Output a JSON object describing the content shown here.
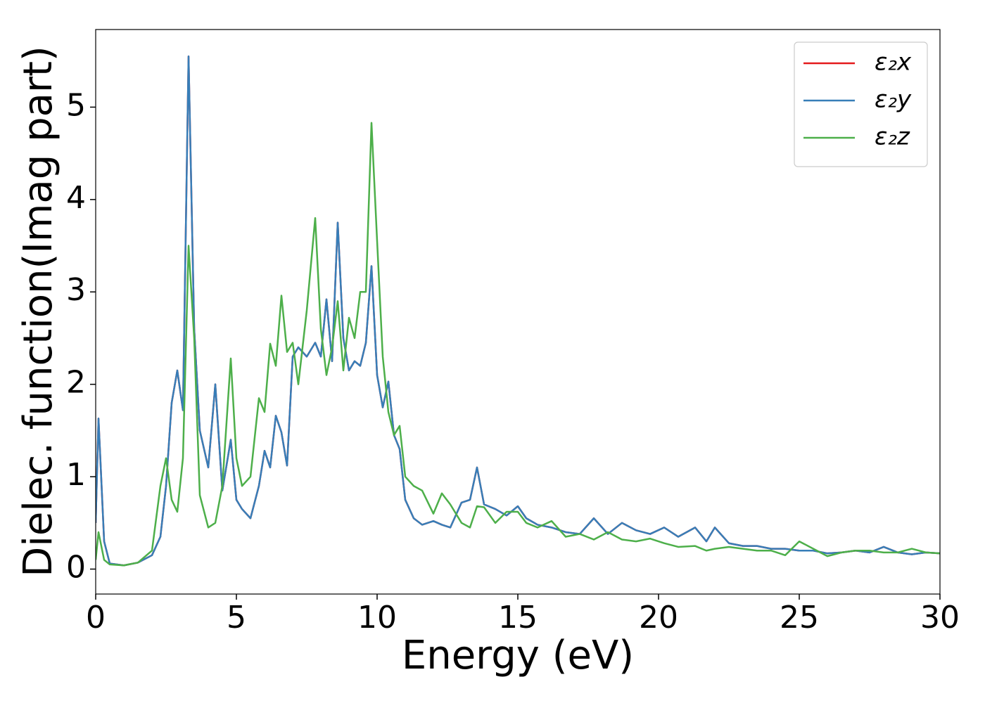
{
  "chart_data": {
    "type": "line",
    "xlabel": "Energy (eV)",
    "ylabel": "Dielec. function(Imag part)",
    "x": [
      0,
      0.1,
      0.3,
      0.5,
      1,
      1.5,
      2,
      2.3,
      2.5,
      2.7,
      2.9,
      3.1,
      3.3,
      3.5,
      3.7,
      4.0,
      4.25,
      4.5,
      4.8,
      5.0,
      5.2,
      5.5,
      5.8,
      6.0,
      6.2,
      6.4,
      6.6,
      6.8,
      7.0,
      7.2,
      7.5,
      7.8,
      8.0,
      8.2,
      8.4,
      8.6,
      8.8,
      9.0,
      9.2,
      9.4,
      9.6,
      9.8,
      10.0,
      10.2,
      10.4,
      10.6,
      10.8,
      11.0,
      11.3,
      11.6,
      12.0,
      12.3,
      12.6,
      13.0,
      13.3,
      13.55,
      13.8,
      14.2,
      14.6,
      15.0,
      15.3,
      15.7,
      16.2,
      16.7,
      17.2,
      17.7,
      18.2,
      18.7,
      19.2,
      19.7,
      20.2,
      20.7,
      21.3,
      21.7,
      22.0,
      22.5,
      23.0,
      23.5,
      24.0,
      24.5,
      25.0,
      25.5,
      26.0,
      26.5,
      27.0,
      27.5,
      28.0,
      28.5,
      29.0,
      29.5,
      30.0
    ],
    "series": [
      {
        "name": "ε₂x",
        "color": "#e41a1c",
        "values": [
          0.5,
          1.63,
          0.3,
          0.06,
          0.04,
          0.07,
          0.15,
          0.35,
          0.9,
          1.8,
          2.15,
          1.72,
          5.55,
          2.6,
          1.5,
          1.1,
          2.0,
          0.85,
          1.4,
          0.75,
          0.65,
          0.55,
          0.9,
          1.28,
          1.1,
          1.66,
          1.48,
          1.12,
          2.3,
          2.4,
          2.3,
          2.45,
          2.3,
          2.92,
          2.25,
          3.75,
          2.5,
          2.15,
          2.25,
          2.2,
          2.45,
          3.28,
          2.1,
          1.75,
          2.03,
          1.45,
          1.3,
          0.75,
          0.55,
          0.48,
          0.52,
          0.48,
          0.45,
          0.72,
          0.75,
          1.1,
          0.7,
          0.65,
          0.58,
          0.68,
          0.55,
          0.48,
          0.45,
          0.4,
          0.38,
          0.55,
          0.38,
          0.5,
          0.42,
          0.38,
          0.45,
          0.35,
          0.45,
          0.3,
          0.45,
          0.28,
          0.25,
          0.25,
          0.22,
          0.22,
          0.2,
          0.2,
          0.17,
          0.18,
          0.2,
          0.18,
          0.24,
          0.18,
          0.16,
          0.18,
          0.17
        ]
      },
      {
        "name": "ε₂y",
        "color": "#377eb8",
        "values": [
          0.5,
          1.63,
          0.3,
          0.06,
          0.04,
          0.07,
          0.15,
          0.35,
          0.9,
          1.8,
          2.15,
          1.72,
          5.55,
          2.6,
          1.5,
          1.1,
          2.0,
          0.85,
          1.4,
          0.75,
          0.65,
          0.55,
          0.9,
          1.28,
          1.1,
          1.66,
          1.48,
          1.12,
          2.3,
          2.4,
          2.3,
          2.45,
          2.3,
          2.92,
          2.25,
          3.75,
          2.5,
          2.15,
          2.25,
          2.2,
          2.45,
          3.28,
          2.1,
          1.75,
          2.03,
          1.45,
          1.3,
          0.75,
          0.55,
          0.48,
          0.52,
          0.48,
          0.45,
          0.72,
          0.75,
          1.1,
          0.7,
          0.65,
          0.58,
          0.68,
          0.55,
          0.48,
          0.45,
          0.4,
          0.38,
          0.55,
          0.38,
          0.5,
          0.42,
          0.38,
          0.45,
          0.35,
          0.45,
          0.3,
          0.45,
          0.28,
          0.25,
          0.25,
          0.22,
          0.22,
          0.2,
          0.2,
          0.17,
          0.18,
          0.2,
          0.18,
          0.24,
          0.18,
          0.16,
          0.18,
          0.17
        ]
      },
      {
        "name": "ε₂z",
        "color": "#4daf4a",
        "values": [
          0.1,
          0.4,
          0.1,
          0.05,
          0.04,
          0.07,
          0.2,
          0.9,
          1.2,
          0.75,
          0.62,
          1.2,
          3.5,
          2.5,
          0.8,
          0.45,
          0.5,
          0.9,
          2.28,
          1.2,
          0.9,
          1.0,
          1.85,
          1.7,
          2.44,
          2.2,
          2.96,
          2.35,
          2.45,
          2.0,
          2.8,
          3.8,
          2.6,
          2.1,
          2.4,
          2.9,
          2.15,
          2.72,
          2.5,
          3.0,
          3.0,
          4.83,
          3.55,
          2.3,
          1.7,
          1.45,
          1.55,
          1.0,
          0.9,
          0.85,
          0.6,
          0.82,
          0.7,
          0.5,
          0.45,
          0.68,
          0.67,
          0.5,
          0.62,
          0.62,
          0.5,
          0.45,
          0.52,
          0.35,
          0.38,
          0.32,
          0.4,
          0.32,
          0.3,
          0.33,
          0.28,
          0.24,
          0.25,
          0.2,
          0.22,
          0.24,
          0.22,
          0.2,
          0.2,
          0.15,
          0.3,
          0.22,
          0.14,
          0.18,
          0.2,
          0.2,
          0.18,
          0.18,
          0.22,
          0.18,
          0.17
        ]
      }
    ],
    "xlim": [
      0,
      30
    ],
    "xticks": [
      0,
      5,
      10,
      15,
      20,
      25,
      30
    ],
    "ylim": [
      -0.27,
      5.84
    ],
    "yticks": [
      0,
      1,
      2,
      3,
      4,
      5
    ],
    "grid": false,
    "legend": "upper right"
  }
}
